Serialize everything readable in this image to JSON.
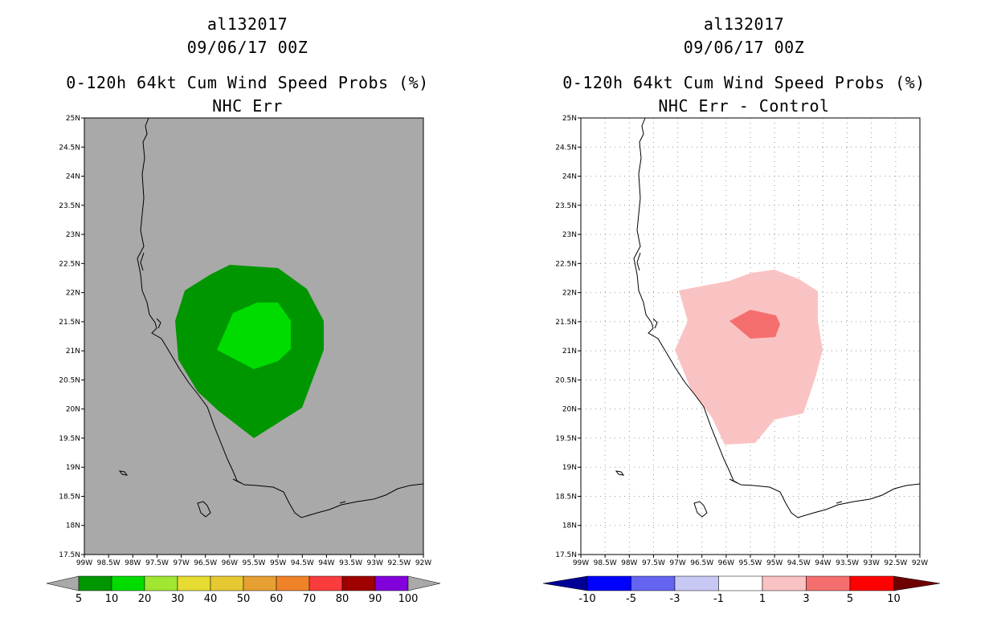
{
  "panels": [
    {
      "storm_id": "al132017",
      "datetime": "09/06/17 00Z",
      "product": "0-120h 64kt Cum Wind Speed Probs (%)",
      "subtitle": "NHC Err",
      "background_color": "#a9a9a9",
      "colorbar": {
        "labels": [
          "5",
          "10",
          "20",
          "30",
          "40",
          "50",
          "60",
          "70",
          "80",
          "90",
          "100"
        ],
        "colors": [
          "#009600",
          "#00dc00",
          "#a0e632",
          "#e6dc32",
          "#e6c832",
          "#e6a032",
          "#f08228",
          "#fa3c3c",
          "#a00000",
          "#8200dc"
        ],
        "end_color": "#a9a9a9"
      }
    },
    {
      "storm_id": "al132017",
      "datetime": "09/06/17 00Z",
      "product": "0-120h 64kt Cum Wind Speed Probs (%)",
      "subtitle": "NHC Err - Control",
      "background_color": "#ffffff",
      "colorbar": {
        "labels": [
          "-10",
          "-5",
          "-3",
          "-1",
          "1",
          "3",
          "5",
          "10"
        ],
        "colors": [
          "#0000ff",
          "#6464f0",
          "#c8c8f5",
          "#ffffff",
          "#fac3c3",
          "#f56e6e",
          "#ff0000"
        ],
        "end_left": "#000096",
        "end_right": "#6e0000"
      }
    }
  ],
  "axes": {
    "lat_labels": [
      "25N",
      "24.5N",
      "24N",
      "23.5N",
      "23N",
      "22.5N",
      "22N",
      "21.5N",
      "21N",
      "20.5N",
      "20N",
      "19.5N",
      "19N",
      "18.5N",
      "18N",
      "17.5N"
    ],
    "lon_labels": [
      "99W",
      "98.5W",
      "98W",
      "97.5W",
      "97W",
      "96.5W",
      "96W",
      "95.5W",
      "95W",
      "94.5W",
      "94W",
      "93.5W",
      "93W",
      "92.5W",
      "92W"
    ],
    "lat_range": [
      17.5,
      25
    ],
    "lon_range": [
      -99,
      -92
    ]
  },
  "contours": {
    "left_outer": {
      "level": "5-10",
      "color": "#009600"
    },
    "left_inner": {
      "level": "10-20",
      "color": "#00dc00"
    },
    "right_outer": {
      "level": "1-3",
      "color": "#fac3c3"
    },
    "right_inner": {
      "level": "3-5",
      "color": "#f56e6e"
    }
  }
}
